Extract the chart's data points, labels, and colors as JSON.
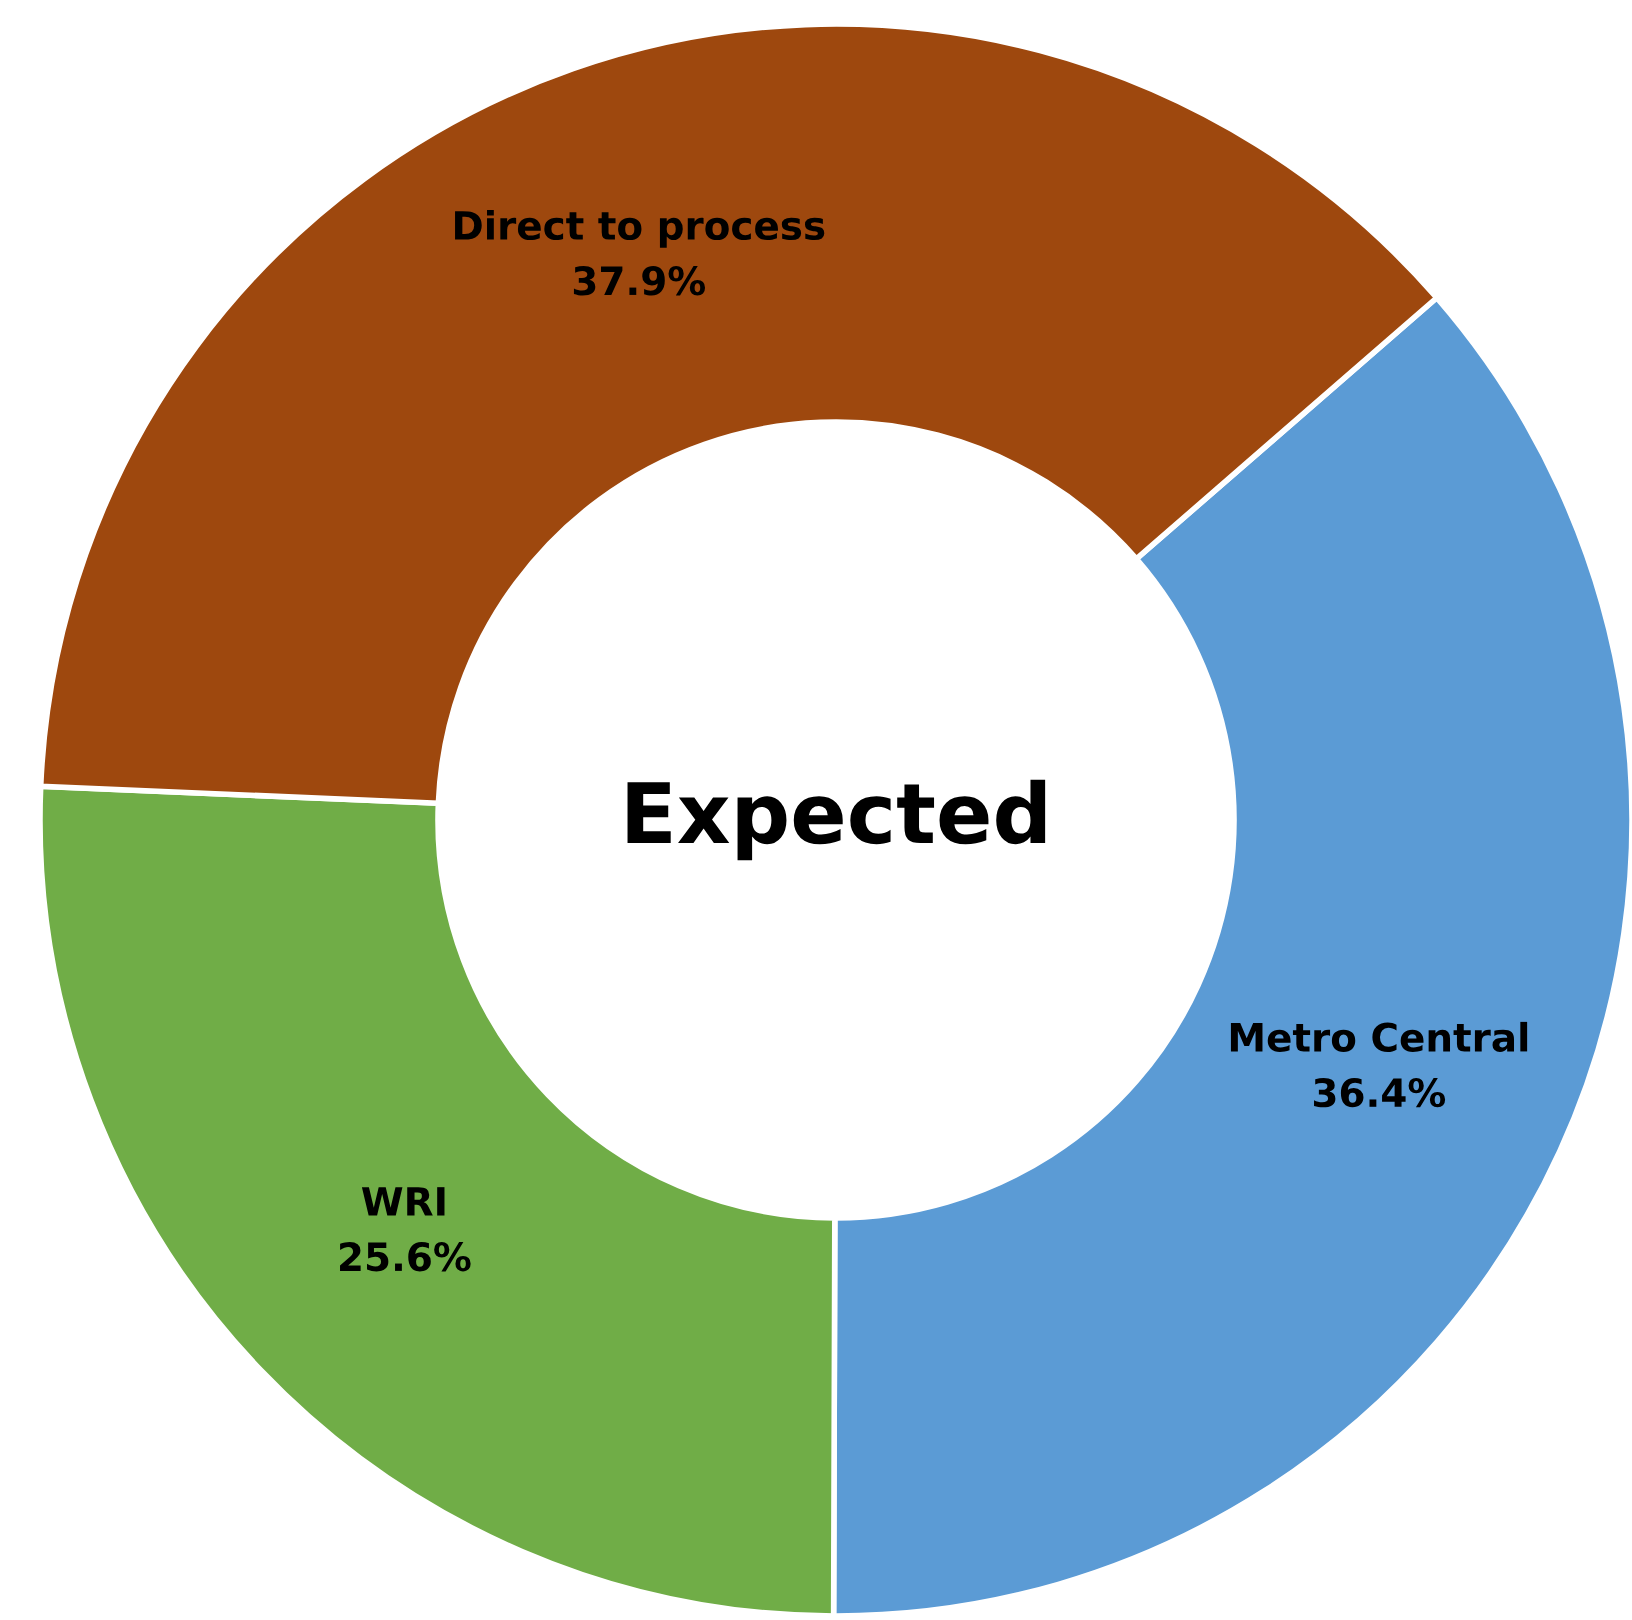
{
  "chart_data": {
    "type": "donut",
    "title": "Expected",
    "categories": [
      "Metro Central",
      "WRI",
      "Direct to process"
    ],
    "values": [
      36.4,
      25.6,
      37.9
    ],
    "colors": [
      "#5b9bd5",
      "#70ad47",
      "#9e480e"
    ],
    "value_labels": [
      "36.4%",
      "25.6%",
      "37.9%"
    ]
  }
}
